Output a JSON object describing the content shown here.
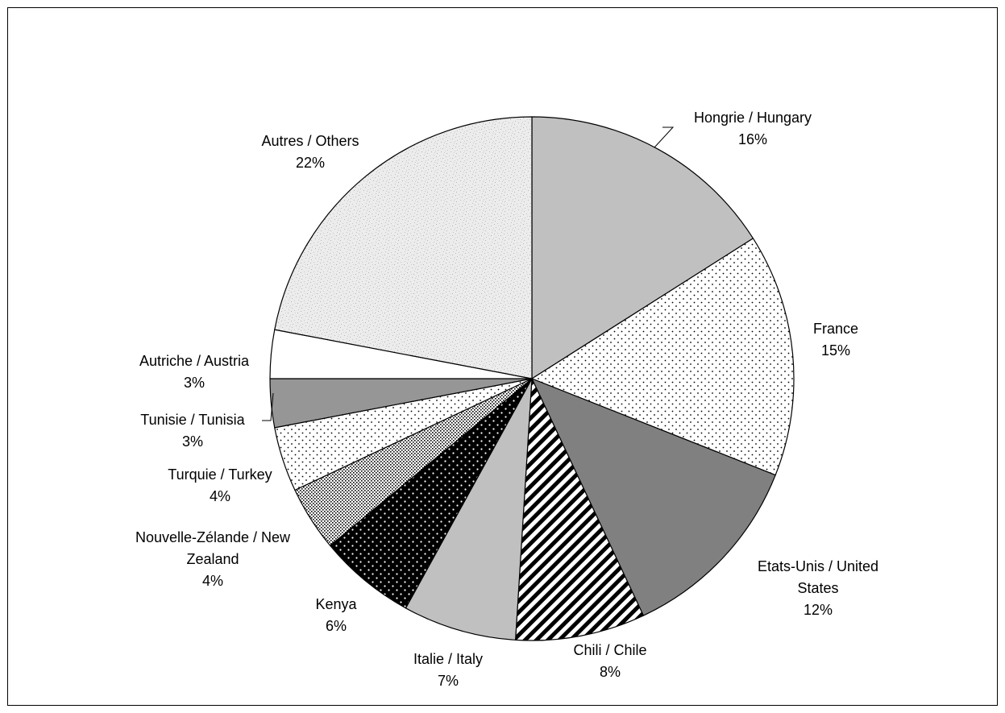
{
  "chart_data": {
    "type": "pie",
    "start_angle_deg": 0,
    "direction": "clockwise",
    "slices": [
      {
        "label_lines": [
          "Hongrie / Hungary"
        ],
        "pct_text": "16%",
        "value": 16,
        "pattern": "solid-lightgray"
      },
      {
        "label_lines": [
          "France"
        ],
        "pct_text": "15%",
        "value": 15,
        "pattern": "dots-sparse"
      },
      {
        "label_lines": [
          "Etats-Unis / United",
          "States"
        ],
        "pct_text": "12%",
        "value": 12,
        "pattern": "solid-darkgray"
      },
      {
        "label_lines": [
          "Chili / Chile"
        ],
        "pct_text": "8%",
        "value": 8,
        "pattern": "diagonal-stripes"
      },
      {
        "label_lines": [
          "Italie / Italy"
        ],
        "pct_text": "7%",
        "value": 7,
        "pattern": "solid-lightgray"
      },
      {
        "label_lines": [
          "Kenya"
        ],
        "pct_text": "6%",
        "value": 6,
        "pattern": "dots-on-black"
      },
      {
        "label_lines": [
          "Nouvelle-Zélande / New",
          "Zealand"
        ],
        "pct_text": "4%",
        "value": 4,
        "pattern": "dots-dense"
      },
      {
        "label_lines": [
          "Turquie / Turkey"
        ],
        "pct_text": "4%",
        "value": 4,
        "pattern": "dots-sparse"
      },
      {
        "label_lines": [
          "Tunisie / Tunisia"
        ],
        "pct_text": "3%",
        "value": 3,
        "pattern": "solid-midgray"
      },
      {
        "label_lines": [
          "Autriche / Austria"
        ],
        "pct_text": "3%",
        "value": 3,
        "pattern": "solid-white"
      },
      {
        "label_lines": [
          "Autres / Others"
        ],
        "pct_text": "22%",
        "value": 22,
        "pattern": "speckle-light"
      }
    ],
    "legend": "none",
    "colors": {
      "solid-lightgray": "#c0c0c0",
      "solid-darkgray": "#808080",
      "solid-midgray": "#969696",
      "solid-white": "#ffffff",
      "outline": "#000000"
    }
  }
}
